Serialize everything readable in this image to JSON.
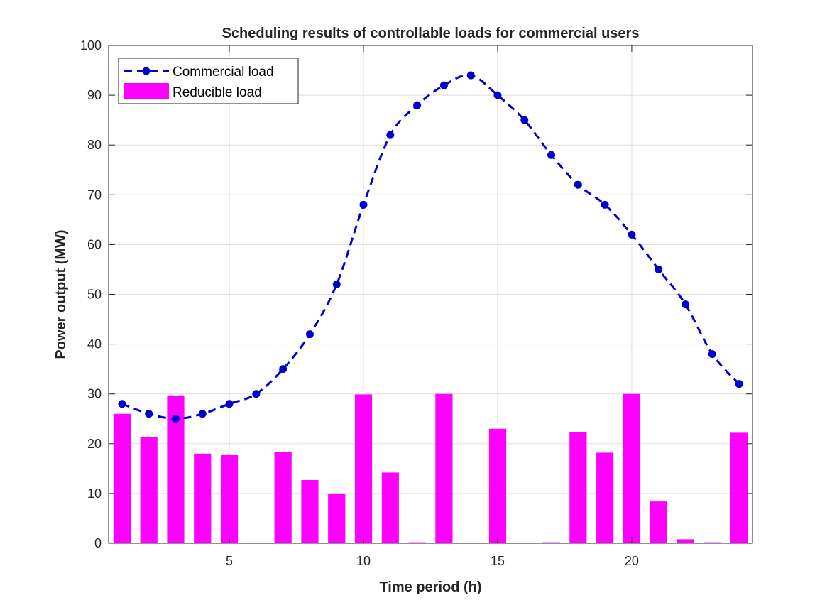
{
  "chart_data": {
    "type": "bar+line",
    "title": "Scheduling results of controllable loads for commercial users",
    "xlabel": "Time period (h)",
    "ylabel": "Power output (MW)",
    "xlim": [
      0.5,
      24.5
    ],
    "ylim": [
      0,
      100
    ],
    "xticks": [
      5,
      10,
      15,
      20
    ],
    "yticks": [
      0,
      10,
      20,
      30,
      40,
      50,
      60,
      70,
      80,
      90,
      100
    ],
    "grid": true,
    "legend_position": "top-left",
    "x": [
      1,
      2,
      3,
      4,
      5,
      6,
      7,
      8,
      9,
      10,
      11,
      12,
      13,
      14,
      15,
      16,
      17,
      18,
      19,
      20,
      21,
      22,
      23,
      24
    ],
    "series": [
      {
        "name": "Commercial load",
        "kind": "line",
        "style": "dashed-with-circle-markers",
        "color": "#0000CC",
        "values": [
          28,
          26,
          25,
          26,
          28,
          30,
          35,
          42,
          52,
          68,
          82,
          88,
          92,
          94,
          90,
          85,
          78,
          72,
          68,
          62,
          55,
          48,
          38,
          32
        ]
      },
      {
        "name": "Reducible load",
        "kind": "bar",
        "color": "#FF00FF",
        "values": [
          26,
          21.3,
          29.7,
          18,
          17.7,
          0,
          18.4,
          12.7,
          10,
          29.9,
          14.2,
          0.2,
          30,
          0,
          23,
          0,
          0.2,
          22.3,
          18.2,
          30,
          8.4,
          0.8,
          0.2,
          22.2
        ]
      }
    ]
  }
}
